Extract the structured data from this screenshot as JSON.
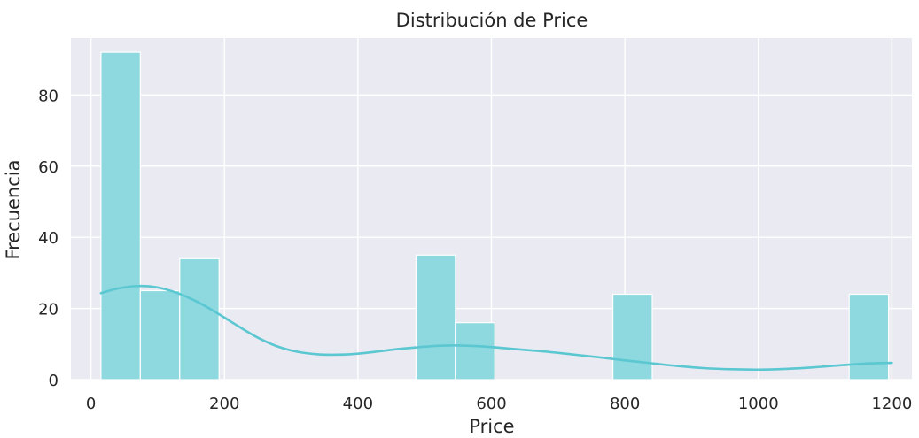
{
  "chart_data": {
    "type": "bar",
    "title": "Distribución de Price",
    "xlabel": "Price",
    "ylabel": "Frecuencia",
    "xlim": [
      -30,
      1230
    ],
    "ylim": [
      0,
      96
    ],
    "x_ticks": [
      0,
      200,
      400,
      600,
      800,
      1000,
      1200
    ],
    "y_ticks": [
      0,
      20,
      40,
      60,
      80
    ],
    "grid": true,
    "bin_width": 59,
    "bins": [
      {
        "start": 15,
        "count": 92
      },
      {
        "start": 74,
        "count": 25
      },
      {
        "start": 133,
        "count": 34
      },
      {
        "start": 192,
        "count": 0
      },
      {
        "start": 251,
        "count": 0
      },
      {
        "start": 310,
        "count": 0
      },
      {
        "start": 369,
        "count": 0
      },
      {
        "start": 428,
        "count": 0
      },
      {
        "start": 487,
        "count": 35
      },
      {
        "start": 546,
        "count": 16
      },
      {
        "start": 605,
        "count": 0
      },
      {
        "start": 664,
        "count": 0
      },
      {
        "start": 723,
        "count": 0
      },
      {
        "start": 782,
        "count": 24
      },
      {
        "start": 841,
        "count": 0
      },
      {
        "start": 900,
        "count": 0
      },
      {
        "start": 959,
        "count": 0
      },
      {
        "start": 1018,
        "count": 0
      },
      {
        "start": 1077,
        "count": 0
      },
      {
        "start": 1136,
        "count": 24
      }
    ],
    "kde": {
      "x": [
        15,
        40,
        70,
        100,
        130,
        160,
        190,
        220,
        250,
        280,
        310,
        340,
        370,
        400,
        430,
        460,
        490,
        520,
        550,
        580,
        610,
        640,
        680,
        720,
        760,
        800,
        840,
        880,
        920,
        960,
        1000,
        1040,
        1080,
        1120,
        1160,
        1200
      ],
      "y": [
        24.3,
        25.6,
        26.3,
        25.9,
        24.3,
        21.8,
        18.6,
        15.1,
        11.8,
        9.3,
        7.8,
        7.1,
        7.0,
        7.3,
        7.9,
        8.6,
        9.1,
        9.5,
        9.6,
        9.4,
        9.0,
        8.5,
        7.9,
        7.1,
        6.3,
        5.4,
        4.6,
        3.8,
        3.2,
        2.9,
        2.8,
        3.0,
        3.4,
        4.0,
        4.5,
        4.7
      ]
    },
    "colors": {
      "bar_fill": "#8ed9e0",
      "kde_line": "#5ac7d1",
      "plot_background": "#eaeaf2",
      "grid": "#ffffff"
    }
  }
}
